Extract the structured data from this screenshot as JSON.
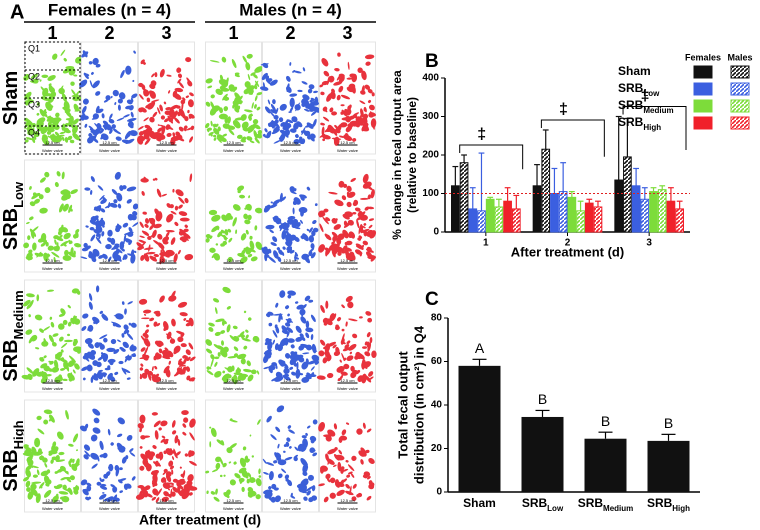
{
  "panel_a": {
    "label": "A",
    "groups": [
      "Females (n = 4)",
      "Males (n = 4)"
    ],
    "columns": [
      "1",
      "2",
      "3",
      "1",
      "2",
      "3"
    ],
    "rows": [
      {
        "name": "Sham"
      },
      {
        "name": "SRB",
        "sub": "Low"
      },
      {
        "name": "SRB",
        "sub": "Medium"
      },
      {
        "name": "SRB",
        "sub": "High"
      }
    ],
    "quadrants": [
      "Q1",
      "Q2",
      "Q3",
      "Q4"
    ],
    "caption": "Water valve",
    "scale": "12.5 cm",
    "xlabel": "After treatment (d)",
    "colors": [
      "#7ddc3a",
      "#3b5fd8",
      "#e8323c"
    ]
  },
  "chart_data": [
    {
      "type": "grouped-bar",
      "panel_label": "B",
      "ylabel": [
        "% change in fecal output area",
        "(relative to baseline)"
      ],
      "xlabel": "After treatment (d)",
      "categories": [
        "1",
        "2",
        "3"
      ],
      "ylim": [
        0,
        400
      ],
      "yticks": [
        0,
        100,
        200,
        300,
        400
      ],
      "reference_line": 100,
      "dagger_labels": [
        "‡",
        "‡",
        "‡"
      ],
      "legend_columns": [
        "Females",
        "Males"
      ],
      "groups": [
        {
          "name": "Sham",
          "color": "#111111"
        },
        {
          "name": "SRB",
          "sub": "Low",
          "color": "#3b5fe0"
        },
        {
          "name": "SRB",
          "sub": "Medium",
          "color": "#7ddc3a"
        },
        {
          "name": "SRB",
          "sub": "High",
          "color": "#f0202a"
        }
      ],
      "series": [
        {
          "group": 0,
          "sex": 0,
          "values": [
            120,
            120,
            135
          ],
          "errors": [
            50,
            55,
            165
          ]
        },
        {
          "group": 0,
          "sex": 1,
          "values": [
            180,
            215,
            195
          ],
          "errors": [
            20,
            50,
            100
          ]
        },
        {
          "group": 1,
          "sex": 0,
          "values": [
            60,
            100,
            120
          ],
          "errors": [
            55,
            65,
            45
          ]
        },
        {
          "group": 1,
          "sex": 1,
          "values": [
            55,
            105,
            85
          ],
          "errors": [
            150,
            75,
            30
          ]
        },
        {
          "group": 2,
          "sex": 0,
          "values": [
            85,
            90,
            105
          ],
          "errors": [
            5,
            15,
            10
          ]
        },
        {
          "group": 2,
          "sex": 1,
          "values": [
            65,
            55,
            110
          ],
          "errors": [
            20,
            25,
            10
          ]
        },
        {
          "group": 3,
          "sex": 0,
          "values": [
            80,
            75,
            80
          ],
          "errors": [
            35,
            10,
            35
          ]
        },
        {
          "group": 3,
          "sex": 1,
          "values": [
            60,
            65,
            60
          ],
          "errors": [
            35,
            15,
            20
          ]
        }
      ]
    },
    {
      "type": "bar",
      "panel_label": "C",
      "ylabel": [
        "Total fecal output",
        "distribution (in cm²) in Q4"
      ],
      "categories": [
        "Sham",
        "SRB",
        "SRB",
        "SRB"
      ],
      "category_subscripts": [
        null,
        "Low",
        "Medium",
        "High"
      ],
      "values": [
        58,
        34.5,
        24.5,
        23.5
      ],
      "errors": [
        3,
        3,
        3,
        3
      ],
      "group_letters": [
        "A",
        "B",
        "B",
        "B"
      ],
      "color": "#111111",
      "ylim": [
        0,
        80
      ],
      "yticks": [
        0,
        20,
        40,
        60,
        80
      ]
    }
  ]
}
